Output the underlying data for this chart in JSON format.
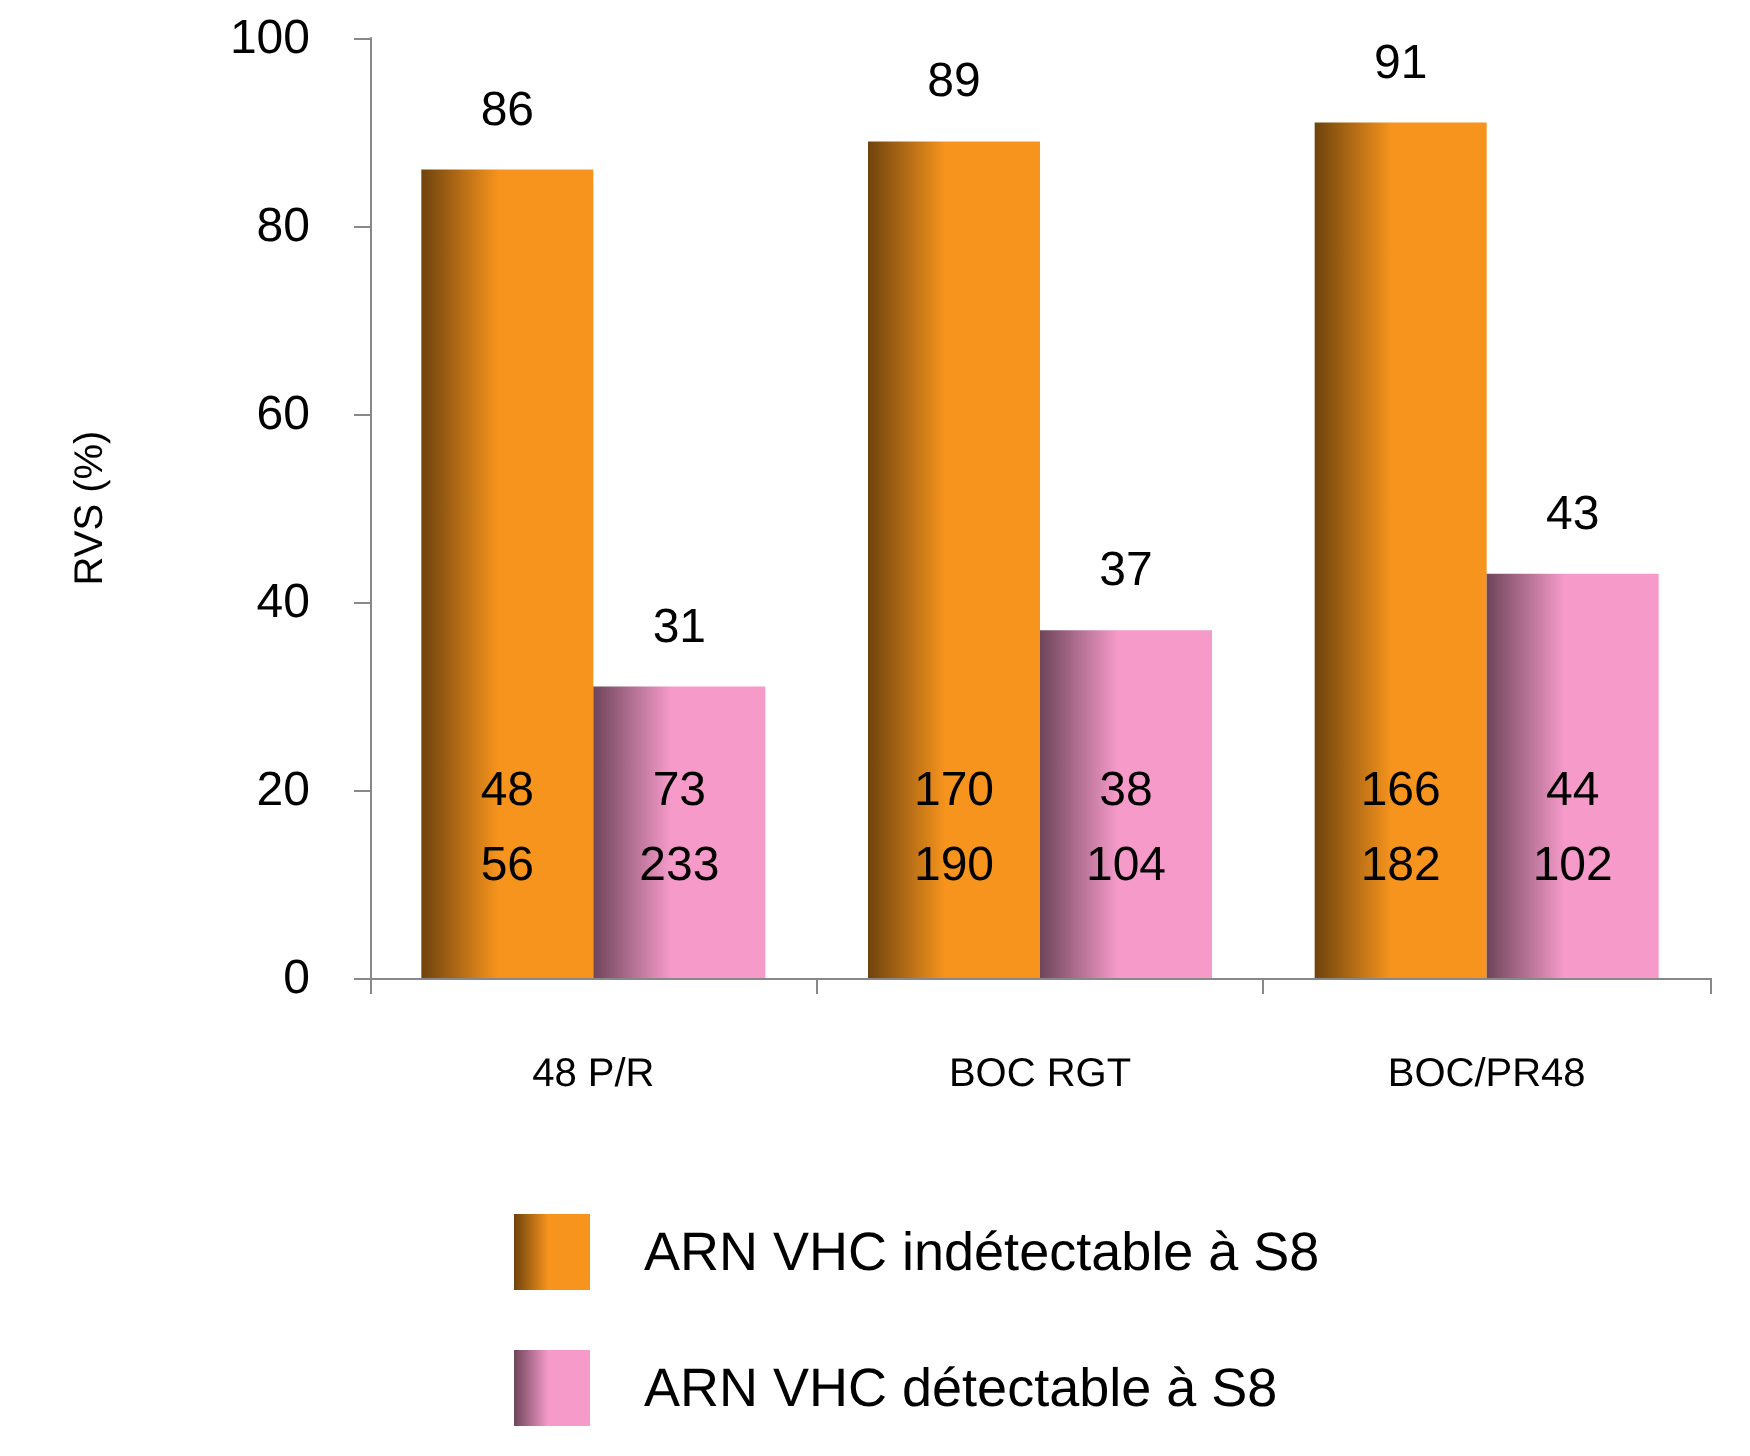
{
  "chart_data": {
    "type": "bar",
    "ylabel": "RVS (%)",
    "categories": [
      "48 P/R",
      "BOC RGT",
      "BOC/PR48"
    ],
    "series": [
      {
        "name": "ARN VHC indétectable à S8",
        "color": "#f7941d",
        "values": [
          86,
          89,
          91
        ]
      },
      {
        "name": "ARN VHC détectable à S8",
        "color": "#f59ac9",
        "values": [
          31,
          37,
          43
        ]
      }
    ],
    "ylim": [
      0,
      100
    ],
    "yticks": [
      0,
      20,
      40,
      60,
      80,
      100
    ],
    "grid": false,
    "legend": "bottom",
    "data_labels": true,
    "annotations": [
      {
        "text": "48",
        "x": "48 P/R",
        "y": 20
      },
      {
        "text": "170",
        "x": "BOC RGT",
        "y": 20
      },
      {
        "text": "166",
        "x": "BOC/PR48",
        "y": 20
      },
      {
        "text": "56",
        "x": "48 P/R",
        "y": 12
      },
      {
        "text": "190",
        "x": "BOC RGT",
        "y": 12
      },
      {
        "text": "182",
        "x": "BOC/PR48",
        "y": 12
      },
      {
        "text": "73",
        "x": "48 P/R",
        "y": 20
      },
      {
        "text": "38",
        "x": "BOC RGT",
        "y": 20
      },
      {
        "text": "44",
        "x": "BOC/PR48",
        "y": 20
      },
      {
        "text": "233",
        "x": "48 P/R",
        "y": 12
      },
      {
        "text": "104",
        "x": "BOC RGT",
        "y": 12
      },
      {
        "text": "102",
        "x": "BOC/PR48",
        "y": 12
      }
    ]
  }
}
